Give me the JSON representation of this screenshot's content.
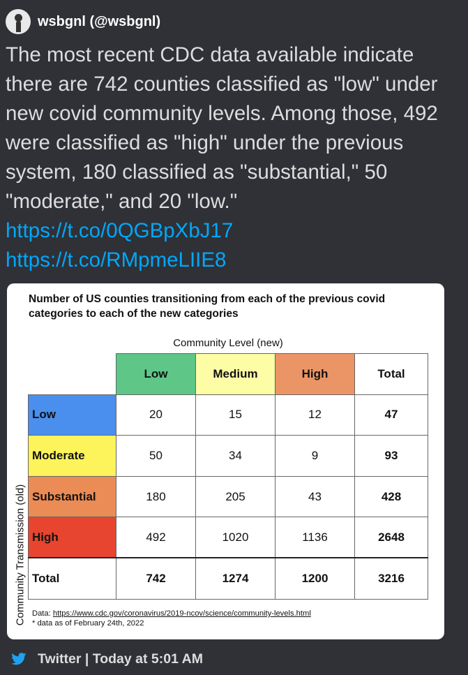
{
  "author": {
    "display": "wsbgnl (@wsbgnl)"
  },
  "tweet": {
    "text": "The most recent CDC data available indicate there are 742 counties classified as \"low\" under new covid community levels. Among those, 492 were classified as \"high\" under the previous system, 180 classified as \"substantial,\" 50 \"moderate,\" and 20 \"low.\"",
    "links": [
      "https://t.co/0QGBpXbJ17",
      "https://t.co/RMpmeLIIE8"
    ]
  },
  "card": {
    "title": "Number of US counties transitioning from each of the previous covid categories to each of the new categories",
    "column_group_label": "Community Level (new)",
    "row_group_label": "Community Transmission (old)",
    "columns": [
      {
        "label": "Low",
        "color": "#5ec788"
      },
      {
        "label": "Medium",
        "color": "#fdfda6"
      },
      {
        "label": "High",
        "color": "#eb9566"
      },
      {
        "label": "Total",
        "color": "#ffffff"
      }
    ],
    "rows": [
      {
        "label": "Low",
        "color": "#4a8fed",
        "values": [
          "20",
          "15",
          "12",
          "47"
        ]
      },
      {
        "label": "Moderate",
        "color": "#fdf35b",
        "values": [
          "50",
          "34",
          "9",
          "93"
        ]
      },
      {
        "label": "Substantial",
        "color": "#eb8b55",
        "values": [
          "180",
          "205",
          "43",
          "428"
        ]
      },
      {
        "label": "High",
        "color": "#e7452f",
        "values": [
          "492",
          "1020",
          "1136",
          "2648"
        ]
      }
    ],
    "total_row": {
      "label": "Total",
      "values": [
        "742",
        "1274",
        "1200",
        "3216"
      ]
    },
    "footnote_prefix": "Data: ",
    "footnote_url": "https://www.cdc.gov/coronavirus/2019-ncov/science/community-levels.html",
    "footnote_asof": "* data as of February 24th, 2022"
  },
  "footer": {
    "text": "Twitter | Today at 5:01 AM",
    "icon": "twitter-bird-icon",
    "icon_color": "#1da1f2"
  },
  "colors": {
    "background": "#2f3136",
    "link": "#00a8fc",
    "text": "#dcddde"
  }
}
